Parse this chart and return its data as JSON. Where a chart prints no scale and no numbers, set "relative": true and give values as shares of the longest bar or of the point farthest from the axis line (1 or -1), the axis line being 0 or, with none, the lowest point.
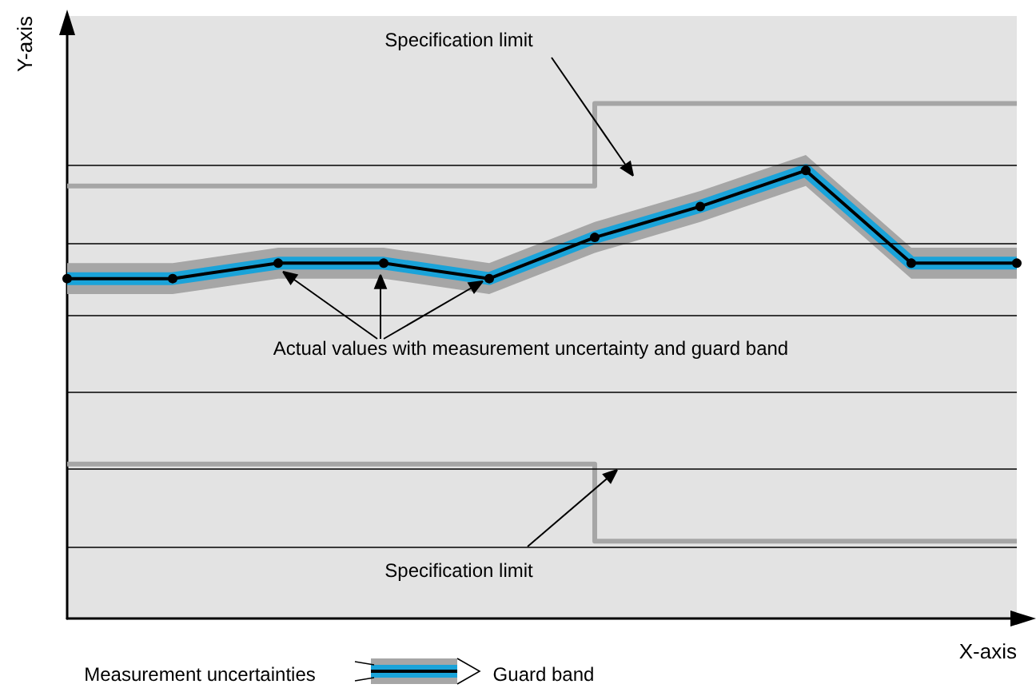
{
  "chart_data": {
    "type": "line",
    "relative": true,
    "xlabel": "X-axis",
    "ylabel": "Y-axis",
    "categories": [
      null,
      null,
      null,
      null,
      null,
      null,
      null,
      null,
      null,
      null
    ],
    "series": [
      {
        "type": "step",
        "color": "#a6a6a6",
        "values": [
          0.84,
          0.84,
          0.84,
          0.84,
          0.84,
          0.84,
          1,
          1,
          1,
          1
        ]
      },
      {
        "type": "step",
        "color": "#a6a6a6",
        "values": [
          0.3,
          0.3,
          0.3,
          0.3,
          0.3,
          0.3,
          0.15,
          0.15,
          0.15,
          0.15
        ]
      },
      {
        "color": "#000000",
        "marker": "circle",
        "values": [
          0.66,
          0.66,
          0.69,
          0.69,
          0.66,
          0.74,
          0.8,
          0.87,
          0.69,
          0.69
        ],
        "lower": [
          0.63,
          0.63,
          0.66,
          0.66,
          0.63,
          0.71,
          0.77,
          0.84,
          0.66,
          0.66
        ],
        "upper": [
          0.69,
          0.69,
          0.72,
          0.72,
          0.69,
          0.77,
          0.83,
          0.9,
          0.72,
          0.72
        ]
      }
    ],
    "ref_lines": [
      {
        "axis": "y",
        "value": 0.88,
        "color": "#000000"
      },
      {
        "axis": "y",
        "value": 0.73,
        "color": "#000000"
      },
      {
        "axis": "y",
        "value": 0.59,
        "color": "#000000"
      },
      {
        "axis": "y",
        "value": 0.44,
        "color": "#000000"
      },
      {
        "axis": "y",
        "value": 0.29,
        "color": "#000000"
      },
      {
        "axis": "y",
        "value": 0.14,
        "color": "#000000"
      }
    ],
    "annotations": [
      "Specification limit",
      "Actual values with measurement uncertainty and guard band",
      "Specification limit",
      "Measurement uncertainties",
      "Guard band"
    ],
    "grid": false
  }
}
